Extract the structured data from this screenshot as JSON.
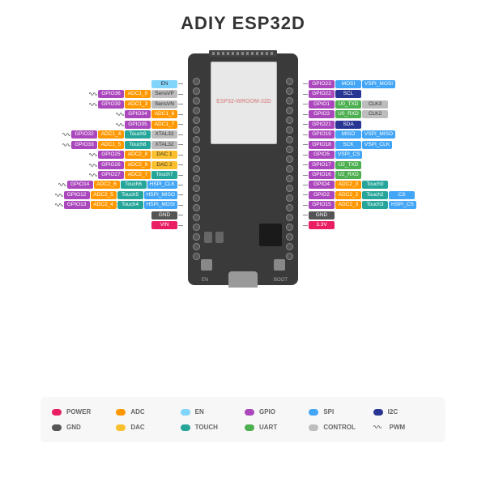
{
  "title": "ADIY ESP32D",
  "module_label": "ESP32-WROOM-32D",
  "colors": {
    "power": "#e91e63",
    "gnd": "#555555",
    "adc": "#ff9800",
    "dac": "#fbc02d",
    "en": "#81d4fa",
    "touch": "#26a69a",
    "gpio": "#ab47bc",
    "uart": "#4caf50",
    "spi": "#42a5f5",
    "control": "#bdbdbd",
    "i2c": "#283593"
  },
  "legend": [
    {
      "c": "power",
      "t": "POWER"
    },
    {
      "c": "adc",
      "t": "ADC"
    },
    {
      "c": "en",
      "t": "EN"
    },
    {
      "c": "gpio",
      "t": "GPIO"
    },
    {
      "c": "spi",
      "t": "SPI"
    },
    {
      "c": "i2c",
      "t": "I2C"
    },
    {
      "c": "gnd",
      "t": "GND"
    },
    {
      "c": "dac",
      "t": "DAC"
    },
    {
      "c": "touch",
      "t": "TOUCH"
    },
    {
      "c": "uart",
      "t": "UART"
    },
    {
      "c": "control",
      "t": "CONTROL"
    },
    {
      "c": "pwm",
      "t": "PWM"
    }
  ],
  "left_pins": [
    [
      {
        "c": "en",
        "t": "EN"
      }
    ],
    [
      {
        "c": "control",
        "t": "SensVP"
      },
      {
        "c": "adc",
        "t": "ADC1_0"
      },
      {
        "c": "gpio",
        "t": "GPIO36"
      },
      {
        "pwm": 1
      }
    ],
    [
      {
        "c": "control",
        "t": "SensVN"
      },
      {
        "c": "adc",
        "t": "ADC1_3"
      },
      {
        "c": "gpio",
        "t": "GPIO39"
      },
      {
        "pwm": 1
      }
    ],
    [
      {
        "c": "adc",
        "t": "ADC1_6"
      },
      {
        "c": "gpio",
        "t": "GPIO34"
      },
      {
        "pwm": 1
      }
    ],
    [
      {
        "c": "adc",
        "t": "ADC1_7"
      },
      {
        "c": "gpio",
        "t": "GPIO35"
      },
      {
        "pwm": 1
      }
    ],
    [
      {
        "c": "control",
        "t": "XTAL32"
      },
      {
        "c": "touch",
        "t": "Touch9"
      },
      {
        "c": "adc",
        "t": "ADC1_4"
      },
      {
        "c": "gpio",
        "t": "GPIO32"
      },
      {
        "pwm": 1
      }
    ],
    [
      {
        "c": "control",
        "t": "XTAL32"
      },
      {
        "c": "touch",
        "t": "Touch8"
      },
      {
        "c": "adc",
        "t": "ADC1_5"
      },
      {
        "c": "gpio",
        "t": "GPIO33"
      },
      {
        "pwm": 1
      }
    ],
    [
      {
        "c": "dac",
        "t": "DAC 1"
      },
      {
        "c": "adc",
        "t": "ADC2_8"
      },
      {
        "c": "gpio",
        "t": "GPIO25"
      },
      {
        "pwm": 1
      }
    ],
    [
      {
        "c": "dac",
        "t": "DAC 2"
      },
      {
        "c": "adc",
        "t": "ADC2_9"
      },
      {
        "c": "gpio",
        "t": "GPIO26"
      },
      {
        "pwm": 1
      }
    ],
    [
      {
        "c": "touch",
        "t": "Touch7"
      },
      {
        "c": "adc",
        "t": "ADC2_7"
      },
      {
        "c": "gpio",
        "t": "GPIO27"
      },
      {
        "pwm": 1
      }
    ],
    [
      {
        "c": "spi",
        "t": "HSPI_CLK"
      },
      {
        "c": "touch",
        "t": "Touch6"
      },
      {
        "c": "adc",
        "t": "ADC2_6"
      },
      {
        "c": "gpio",
        "t": "GPIO14"
      },
      {
        "pwm": 1
      }
    ],
    [
      {
        "c": "spi",
        "t": "HSPI_MISO"
      },
      {
        "c": "touch",
        "t": "Touch5"
      },
      {
        "c": "adc",
        "t": "ADC2_5"
      },
      {
        "c": "gpio",
        "t": "GPIO12"
      },
      {
        "pwm": 1
      }
    ],
    [
      {
        "c": "spi",
        "t": "HSPI_MOSI"
      },
      {
        "c": "touch",
        "t": "Touch4"
      },
      {
        "c": "adc",
        "t": "ADC2_4"
      },
      {
        "c": "gpio",
        "t": "GPIO13"
      },
      {
        "pwm": 1
      }
    ],
    [
      {
        "c": "gnd",
        "t": "GND"
      }
    ],
    [
      {
        "c": "power",
        "t": "VIN"
      }
    ]
  ],
  "right_pins": [
    [
      {
        "c": "gpio",
        "t": "GPIO23"
      },
      {
        "c": "spi",
        "t": "MOSI"
      },
      {
        "c": "spi",
        "t": "VSPI_MOSI"
      }
    ],
    [
      {
        "c": "gpio",
        "t": "GPIO22"
      },
      {
        "c": "i2c",
        "t": "SCL"
      }
    ],
    [
      {
        "c": "gpio",
        "t": "GPIO1"
      },
      {
        "c": "uart",
        "t": "U0_TXD"
      },
      {
        "c": "control",
        "t": "CLK3"
      }
    ],
    [
      {
        "c": "gpio",
        "t": "GPIO3"
      },
      {
        "c": "uart",
        "t": "U0_RXD"
      },
      {
        "c": "control",
        "t": "CLK2"
      }
    ],
    [
      {
        "c": "gpio",
        "t": "GPIO21"
      },
      {
        "c": "i2c",
        "t": "SDA"
      }
    ],
    [
      {
        "c": "gpio",
        "t": "GPIO19"
      },
      {
        "c": "spi",
        "t": "MISO"
      },
      {
        "c": "spi",
        "t": "VSPI_MISO"
      }
    ],
    [
      {
        "c": "gpio",
        "t": "GPIO18"
      },
      {
        "c": "spi",
        "t": "SCK"
      },
      {
        "c": "spi",
        "t": "VSPI_CLK"
      }
    ],
    [
      {
        "c": "gpio",
        "t": "GPIO5"
      },
      {
        "c": "spi",
        "t": "VSPI_CS"
      }
    ],
    [
      {
        "c": "gpio",
        "t": "GPIO17"
      },
      {
        "c": "uart",
        "t": "U2_TXD"
      }
    ],
    [
      {
        "c": "gpio",
        "t": "GPIO16"
      },
      {
        "c": "uart",
        "t": "U2_RXD"
      }
    ],
    [
      {
        "c": "gpio",
        "t": "GPIO4"
      },
      {
        "c": "adc",
        "t": "ADC2_0"
      },
      {
        "c": "touch",
        "t": "Touch0"
      }
    ],
    [
      {
        "c": "gpio",
        "t": "GPIO2"
      },
      {
        "c": "adc",
        "t": "ADC2_2"
      },
      {
        "c": "touch",
        "t": "Touch2"
      },
      {
        "c": "spi",
        "t": "CS"
      }
    ],
    [
      {
        "c": "gpio",
        "t": "GPIO15"
      },
      {
        "c": "adc",
        "t": "ADC2_3"
      },
      {
        "c": "touch",
        "t": "Touch3"
      },
      {
        "c": "spi",
        "t": "HSPI_CS"
      }
    ],
    [
      {
        "c": "gnd",
        "t": "GND"
      }
    ],
    [
      {
        "c": "power",
        "t": "3.3V"
      }
    ]
  ],
  "buttons": {
    "en": "EN",
    "boot": "BOOT"
  },
  "pin_count": 19
}
